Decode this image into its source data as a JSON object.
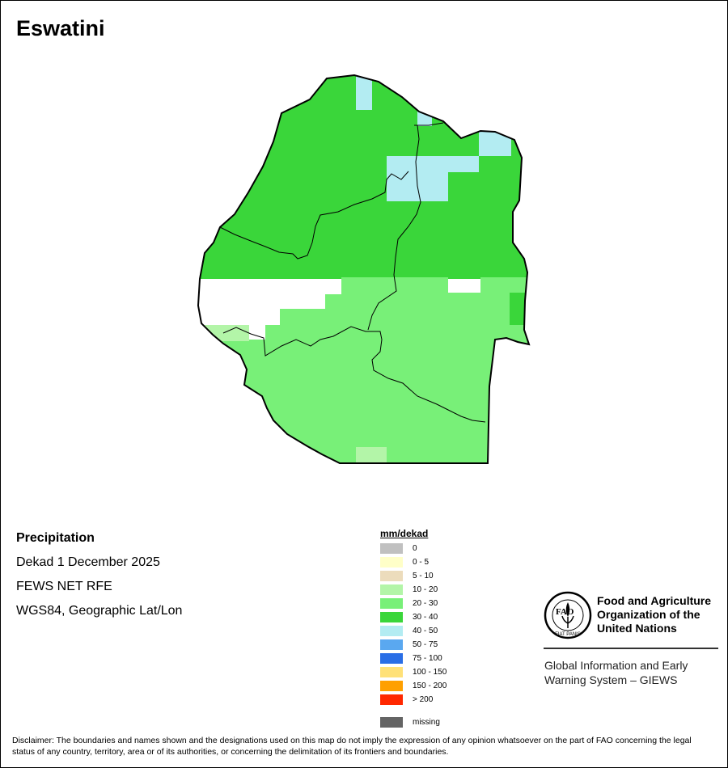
{
  "map": {
    "title": "Eswatini",
    "colors": {
      "c10_20": "#b3f5a8",
      "c20_30": "#78f078",
      "c30_40": "#3ad63a",
      "c40_50": "#b3ecf2",
      "outline": "#000000"
    }
  },
  "info": {
    "variable": "Precipitation",
    "period": "Dekad 1 December 2025",
    "source": "FEWS NET RFE",
    "projection": "WGS84, Geographic Lat/Lon"
  },
  "legend": {
    "title": "mm/dekad",
    "items": [
      {
        "label": "0",
        "color": "#c0c0c0"
      },
      {
        "label": "0 - 5",
        "color": "#ffffc8"
      },
      {
        "label": "5 - 10",
        "color": "#ecdcbc"
      },
      {
        "label": "10 - 20",
        "color": "#b3f5a8"
      },
      {
        "label": "20 - 30",
        "color": "#78f078"
      },
      {
        "label": "30 - 40",
        "color": "#3ad63a"
      },
      {
        "label": "40 - 50",
        "color": "#b3ecf2"
      },
      {
        "label": "50 - 75",
        "color": "#5aa8f0"
      },
      {
        "label": "75 - 100",
        "color": "#2a6ee6"
      },
      {
        "label": "100 - 150",
        "color": "#ffe178"
      },
      {
        "label": "150 - 200",
        "color": "#ffa000"
      },
      {
        "label": "> 200",
        "color": "#ff2800"
      },
      {
        "label": "missing",
        "color": "#646464"
      }
    ]
  },
  "fao": {
    "org_line1": "Food and Agriculture",
    "org_line2": "Organization of the",
    "org_line3": "United Nations",
    "system_line1": "Global Information and Early",
    "system_line2": "Warning System – GIEWS",
    "logo_letters": "FAO",
    "logo_motto": "FIAT PANIS"
  },
  "disclaimer": "Disclaimer: The boundaries and names shown and the designations used on this map do not imply the expression of any opinion whatsoever on the part of FAO concerning the legal status of any country, territory, area or of its authorities, or concerning the delimitation of its frontiers and boundaries."
}
